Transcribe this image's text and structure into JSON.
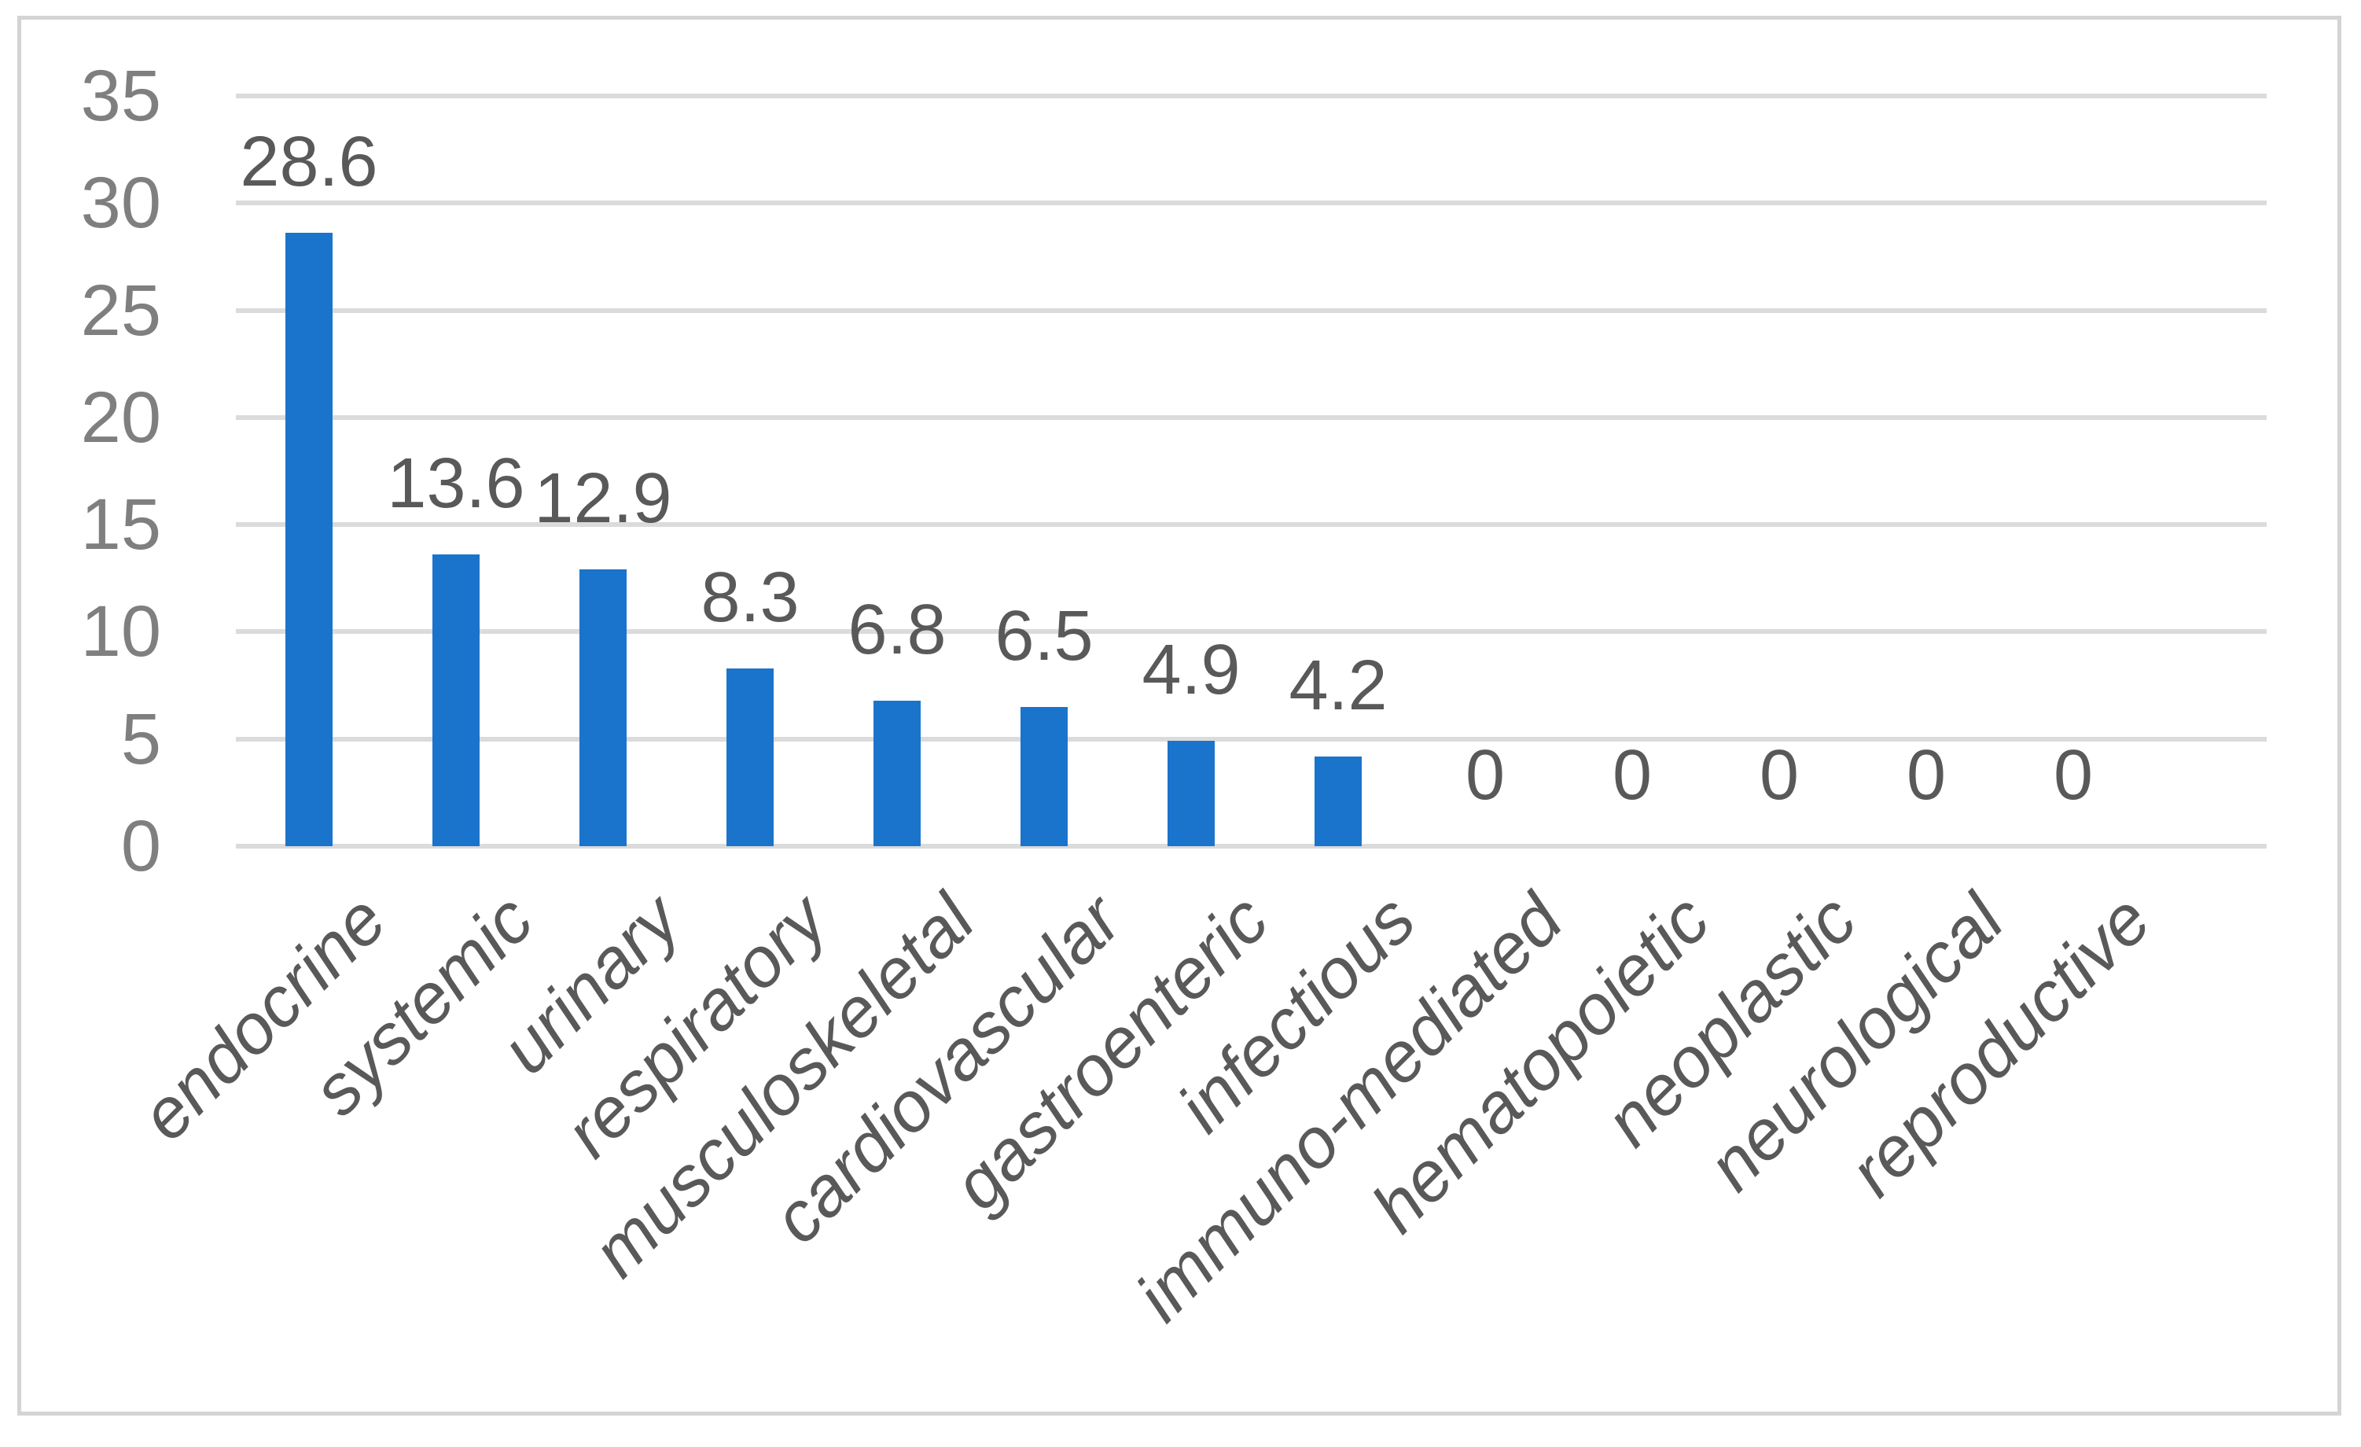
{
  "figure": {
    "description": "Bar chart of disease categories (percent), no title, no legend",
    "background": "#ffffff",
    "frame_border_color": "#d4d4d4"
  },
  "chart_data": {
    "type": "bar",
    "title": "",
    "xlabel": "",
    "ylabel": "",
    "categories": [
      "endocrine",
      "systemic",
      "urinary",
      "respiratory",
      "musculoskeletal",
      "cardiovascular",
      "gastroenteric",
      "infectious",
      "immuno-mediated",
      "hematopoietic",
      "neoplastic",
      "neurological",
      "reproductive"
    ],
    "values": [
      28.6,
      13.6,
      12.9,
      8.3,
      6.8,
      6.5,
      4.9,
      4.2,
      0,
      0,
      0,
      0,
      0
    ],
    "data_labels": [
      "28.6",
      "13.6",
      "12.9",
      "8.3",
      "6.8",
      "6.5",
      "4.9",
      "4.2",
      "0",
      "0",
      "0",
      "0",
      "0"
    ],
    "ylim": [
      0,
      35
    ],
    "yticks": [
      0,
      5,
      10,
      15,
      20,
      25,
      30,
      35
    ],
    "grid": "horizontal gridlines on, every 5 units",
    "legend": "none",
    "colors": {
      "bar": "#1b74cb",
      "gridline": "#dbdbdb",
      "tick_label": "#7f7f7f",
      "data_label": "#595959",
      "category_label": "#595959"
    },
    "category_label_style": "italic, rotated 45 degrees"
  }
}
